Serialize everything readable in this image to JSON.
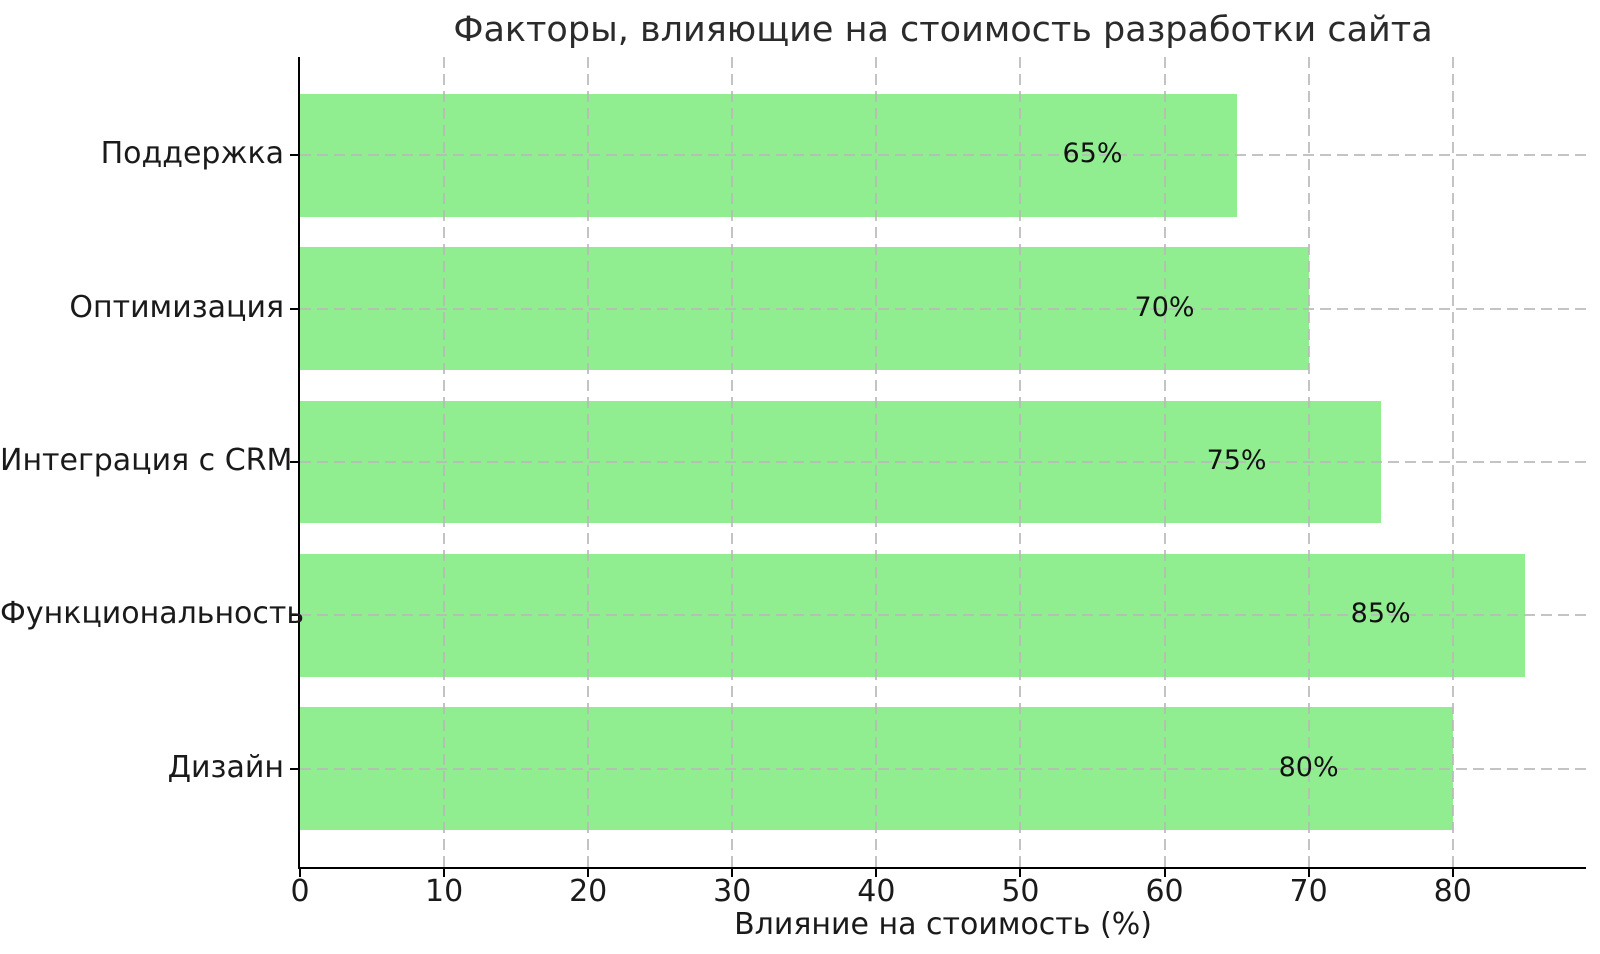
{
  "chart_data": {
    "type": "bar",
    "orientation": "horizontal",
    "title": "Факторы, влияющие на стоимость разработки сайта",
    "xlabel": "Влияние на стоимость (%)",
    "ylabel": "",
    "categories": [
      "Поддержка",
      "Оптимизация",
      "Интеграция с CRM",
      "Функциональность",
      "Дизайн"
    ],
    "values": [
      65,
      70,
      75,
      85,
      80
    ],
    "value_labels": [
      "65%",
      "70%",
      "75%",
      "85%",
      "80%"
    ],
    "xlim": [
      0,
      89.25
    ],
    "xticks": [
      0,
      10,
      20,
      30,
      40,
      50,
      60,
      70,
      80
    ],
    "grid": {
      "style": "dashed",
      "axes": "both",
      "above_bars": true
    },
    "legend": "none",
    "colors": {
      "bar": "#90EE90",
      "grid": "#b9b9b9",
      "axis": "#000000",
      "text": "#1a1a1a",
      "background": "#ffffff"
    },
    "value_label_inset_units": 10
  }
}
